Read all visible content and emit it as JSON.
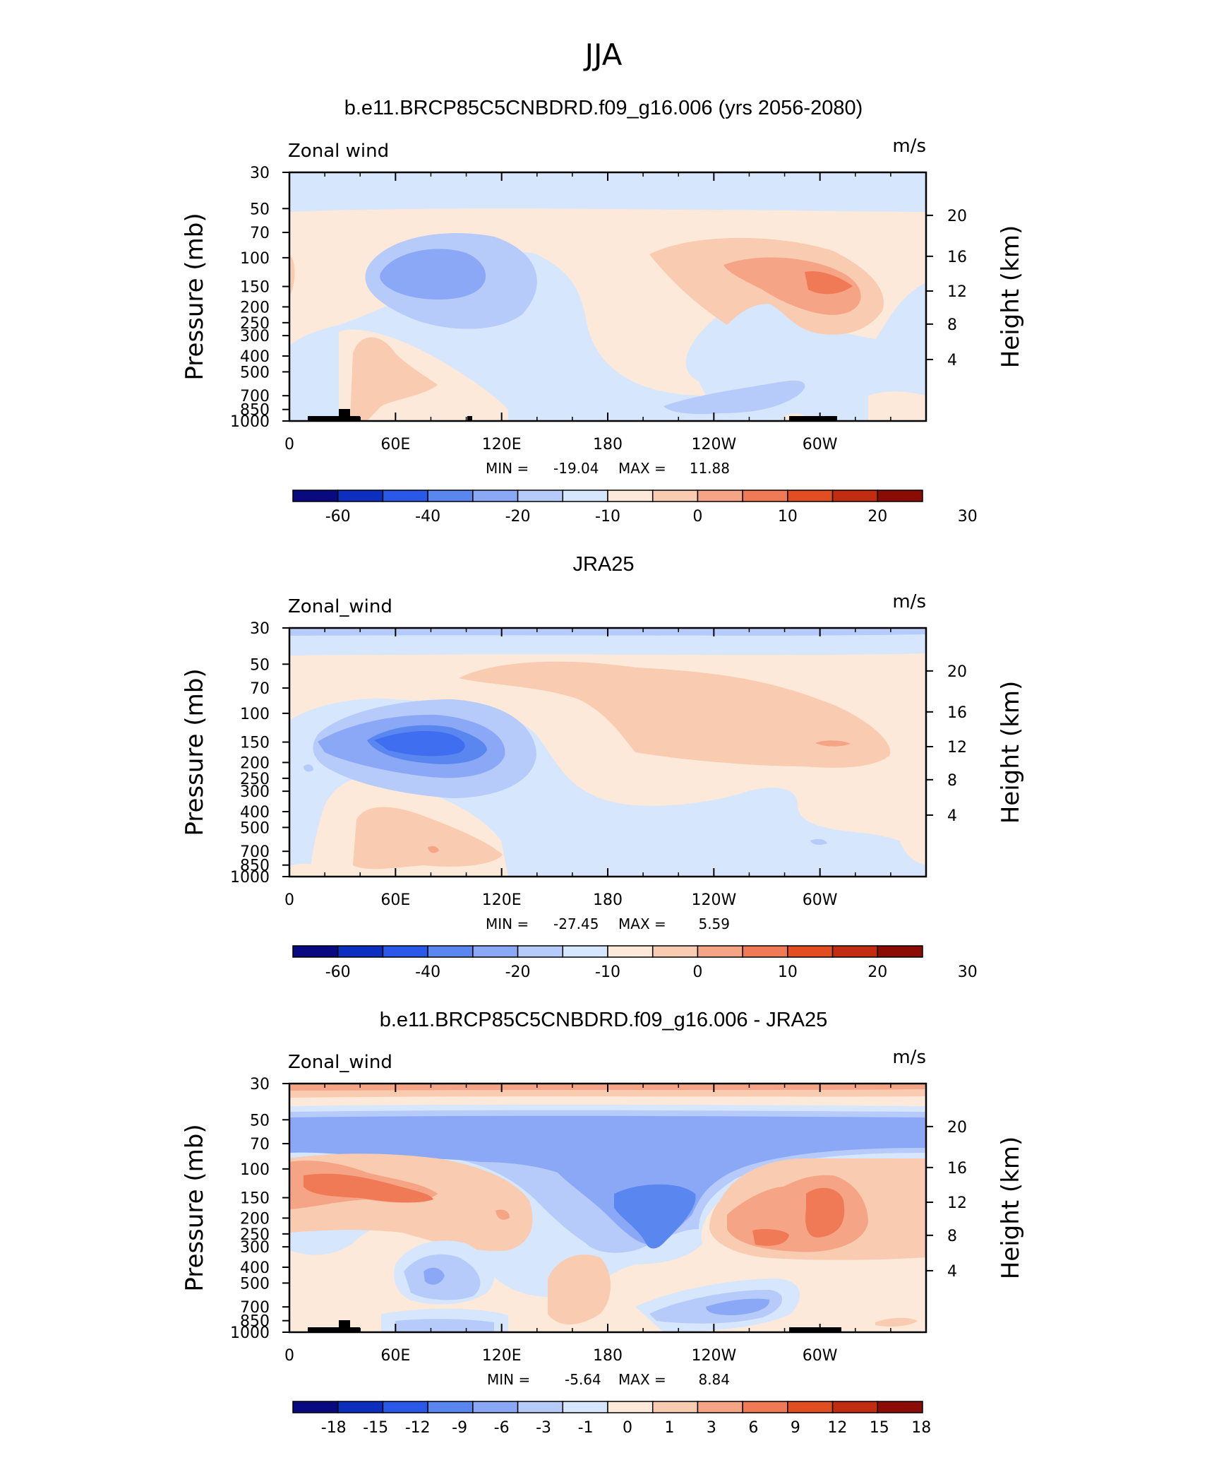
{
  "figure": {
    "title": "JJA"
  },
  "chart_data": [
    {
      "type": "contour",
      "title": "b.e11.BRCP85C5CNBDRD.f09_g16.006 (yrs 2056-2080)",
      "variable_label": "Zonal wind",
      "units": "m/s",
      "ylabel_left": "Pressure (mb)",
      "ylabel_right": "Height (km)",
      "x_ticks": [
        "0",
        "60E",
        "120E",
        "180",
        "120W",
        "60W"
      ],
      "y_ticks_pressure": [
        "30",
        "50",
        "70",
        "100",
        "150",
        "200",
        "250",
        "300",
        "400",
        "500",
        "700",
        "850",
        "1000"
      ],
      "y_ticks_height": [
        "20",
        "16",
        "12",
        "8",
        "4"
      ],
      "stats": {
        "min_label": "MIN =",
        "min": "-19.04",
        "max_label": "MAX =",
        "max": "11.88"
      },
      "colorbar_labels": [
        "-60",
        "-40",
        "-20",
        "-10",
        "0",
        "10",
        "20",
        "30"
      ]
    },
    {
      "type": "contour",
      "title": "JRA25",
      "variable_label": "Zonal_wind",
      "units": "m/s",
      "ylabel_left": "Pressure (mb)",
      "ylabel_right": "Height (km)",
      "x_ticks": [
        "0",
        "60E",
        "120E",
        "180",
        "120W",
        "60W"
      ],
      "y_ticks_pressure": [
        "30",
        "50",
        "70",
        "100",
        "150",
        "200",
        "250",
        "300",
        "400",
        "500",
        "700",
        "850",
        "1000"
      ],
      "y_ticks_height": [
        "20",
        "16",
        "12",
        "8",
        "4"
      ],
      "stats": {
        "min_label": "MIN =",
        "min": "-27.45",
        "max_label": "MAX =",
        "max": "5.59"
      },
      "colorbar_labels": [
        "-60",
        "-40",
        "-20",
        "-10",
        "0",
        "10",
        "20",
        "30"
      ]
    },
    {
      "type": "contour",
      "title": "b.e11.BRCP85C5CNBDRD.f09_g16.006 - JRA25",
      "variable_label": "Zonal_wind",
      "units": "m/s",
      "ylabel_left": "Pressure (mb)",
      "ylabel_right": "Height (km)",
      "x_ticks": [
        "0",
        "60E",
        "120E",
        "180",
        "120W",
        "60W"
      ],
      "y_ticks_pressure": [
        "30",
        "50",
        "70",
        "100",
        "150",
        "200",
        "250",
        "300",
        "400",
        "500",
        "700",
        "850",
        "1000"
      ],
      "y_ticks_height": [
        "20",
        "16",
        "12",
        "8",
        "4"
      ],
      "stats": {
        "min_label": "MIN =",
        "min": "-5.64",
        "max_label": "MAX =",
        "max": "8.84"
      },
      "colorbar_labels": [
        "-18",
        "-15",
        "-12",
        "-9",
        "-6",
        "-3",
        "-1",
        "0",
        "1",
        "3",
        "6",
        "9",
        "12",
        "15",
        "18"
      ]
    }
  ],
  "colorbar_colors": [
    "#0a0a80",
    "#0d2fc0",
    "#2a58e8",
    "#5a86f0",
    "#8aa8f5",
    "#b7cbfa",
    "#d6e6fc",
    "#fde9d9",
    "#f9cbb0",
    "#f5a486",
    "#ef7a55",
    "#e24e22",
    "#c22c10",
    "#8a0c05"
  ],
  "palette": {
    "b3": "#8aa8f5",
    "b2": "#b7cbfa",
    "b1": "#d6e6fc",
    "b4": "#5a86f0",
    "b5": "#3f6ef0",
    "r1": "#fde9d9",
    "r2": "#f9cbb0",
    "r3": "#f5a486",
    "r4": "#ef7a55"
  }
}
